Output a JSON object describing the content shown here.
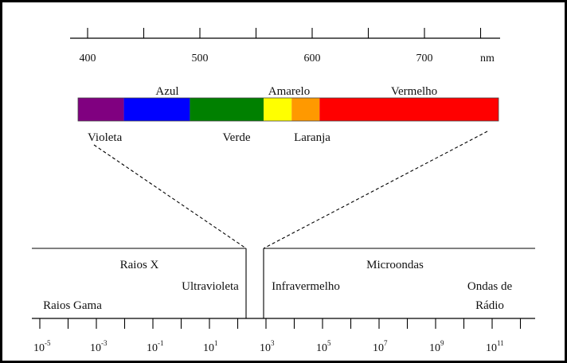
{
  "visible_scale": {
    "ticks": [
      400,
      450,
      500,
      550,
      600,
      650,
      700,
      750
    ],
    "labels": [
      {
        "value": 400,
        "text": "400"
      },
      {
        "value": 500,
        "text": "500"
      },
      {
        "value": 600,
        "text": "600"
      },
      {
        "value": 700,
        "text": "700"
      }
    ],
    "unit": "nm"
  },
  "color_bands": [
    {
      "name": "violet",
      "from": 400,
      "to": 441,
      "color": "#800080"
    },
    {
      "name": "blue",
      "from": 441,
      "to": 500,
      "color": "#0000ff"
    },
    {
      "name": "green",
      "from": 500,
      "to": 566,
      "color": "#008000"
    },
    {
      "name": "yellow",
      "from": 566,
      "to": 591,
      "color": "#ffff00"
    },
    {
      "name": "orange",
      "from": 591,
      "to": 616,
      "color": "#ff9900"
    },
    {
      "name": "red",
      "from": 616,
      "to": 776,
      "color": "#ff0000"
    }
  ],
  "color_labels": {
    "azul": "Azul",
    "amarelo": "Amarelo",
    "vermelho": "Vermelho",
    "violeta": "Violeta",
    "verde": "Verde",
    "laranja": "Laranja"
  },
  "em_spectrum": {
    "exponents": [
      "-5",
      "-3",
      "-1",
      "1",
      "3",
      "5",
      "7",
      "9",
      "11"
    ],
    "base": "10",
    "regions": {
      "raios_x": "Raios X",
      "ultravioleta": "Ultravioleta",
      "raios_gama": "Raios Gama",
      "infravermelho": "Infravermelho",
      "microondas": "Microondas",
      "ondas_de_radio_1": "Ondas de",
      "ondas_de_radio_2": "Rádio"
    }
  }
}
